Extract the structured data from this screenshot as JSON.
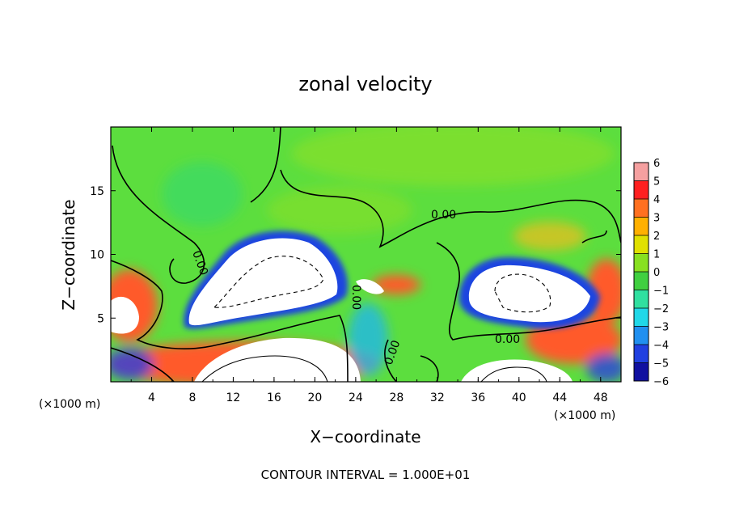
{
  "chart_data": {
    "type": "heatmap",
    "title": "zonal velocity",
    "xlabel": "X−coordinate",
    "ylabel": "Z−coordinate",
    "x_scale_note_left": "(×1000 m)",
    "x_scale_note_right": "(×1000 m)",
    "xlim": [
      0,
      50
    ],
    "ylim": [
      0,
      20
    ],
    "x_ticks": [
      4,
      8,
      12,
      16,
      20,
      24,
      28,
      32,
      36,
      40,
      44,
      48
    ],
    "y_ticks": [
      5,
      10,
      15
    ],
    "colorbar": {
      "ticks": [
        6,
        5,
        4,
        3,
        2,
        1,
        0,
        -1,
        -2,
        -3,
        -4,
        -5,
        -6
      ],
      "colors": [
        "#f5a0a0",
        "#ff2020",
        "#ff7020",
        "#ffb000",
        "#e0e000",
        "#88e020",
        "#40d040",
        "#30e0a0",
        "#20d8e8",
        "#2090f0",
        "#2040e0",
        "#1010a0",
        "#700090"
      ]
    },
    "contour_labels": [
      "0.00",
      "0.00",
      "0.00",
      "0.00",
      "0.00"
    ],
    "footnote": "CONTOUR INTERVAL = 1.000E+01"
  }
}
